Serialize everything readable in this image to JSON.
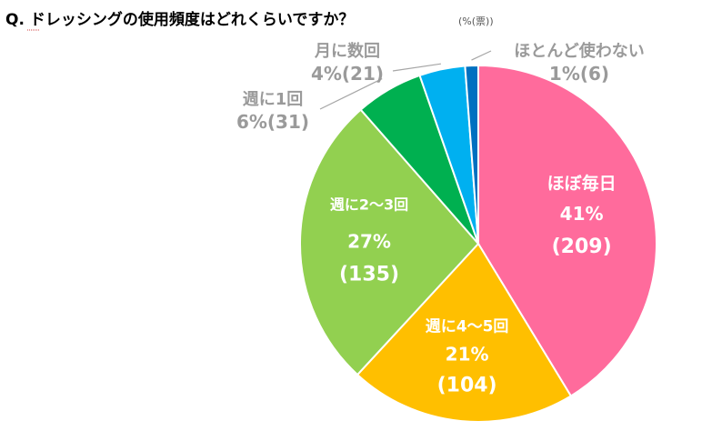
{
  "title": "Q.  ドレッシングの使用頻度はどれくらいですか？",
  "unit_note": "(%(票))",
  "chart_data": {
    "type": "pie",
    "title": "Q.  ドレッシングの使用頻度はどれくらいですか？",
    "unit": "%(票)",
    "slices": [
      {
        "label": "ほぼ毎日",
        "percent_label": "41%",
        "count_label": "(209)",
        "value": 209,
        "color": "#ff6b9c"
      },
      {
        "label": "週に4～5回",
        "percent_label": "21%",
        "count_label": "(104)",
        "value": 104,
        "color": "#ffbf00"
      },
      {
        "label": "週に2～3回",
        "percent_label": "27%",
        "count_label": "(135)",
        "value": 135,
        "color": "#92d050"
      },
      {
        "label": "週に1回",
        "percent_label": "6%(31)",
        "value": 31,
        "color": "#00b050"
      },
      {
        "label": "月に数回",
        "percent_label": "4%(21)",
        "value": 21,
        "color": "#00b0f0"
      },
      {
        "label": "ほとんど使わない",
        "percent_label": "1%(6)",
        "value": 6,
        "color": "#0070c0"
      }
    ]
  }
}
